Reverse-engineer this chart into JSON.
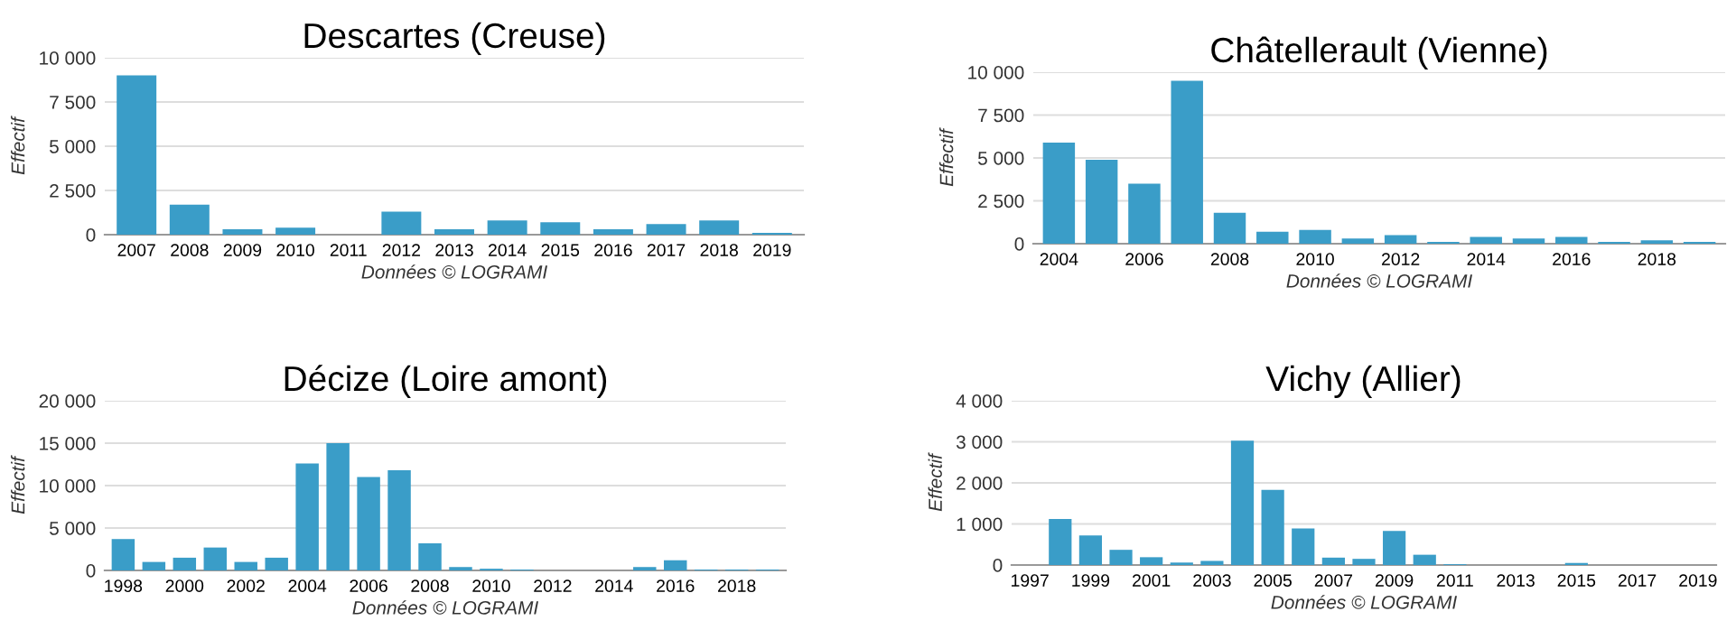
{
  "chart_data": [
    {
      "type": "bar",
      "title": "Descartes (Creuse)",
      "ylabel": "Effectif",
      "xlabel": "Données © LOGRAMI",
      "color": "#3a9dc8",
      "grid": "y",
      "legend": false,
      "categories": [
        "2007",
        "2008",
        "2009",
        "2010",
        "2011",
        "2012",
        "2013",
        "2014",
        "2015",
        "2016",
        "2017",
        "2018",
        "2019"
      ],
      "values": [
        9000,
        1700,
        300,
        400,
        0,
        1300,
        300,
        800,
        700,
        300,
        600,
        800,
        100
      ],
      "ylim": [
        0,
        10000
      ],
      "yticks": [
        0,
        {
          "value": 2500,
          "label": "2 500"
        },
        {
          "value": 5000,
          "label": "5 000"
        },
        {
          "value": 7500,
          "label": "7 500"
        },
        {
          "value": 10000,
          "label": "10 000"
        }
      ]
    },
    {
      "type": "bar",
      "title": "Châtellerault (Vienne)",
      "ylabel": "Effectif",
      "xlabel": "Données © LOGRAMI",
      "color": "#3a9dc8",
      "grid": "y",
      "legend": false,
      "categories": [
        "2004",
        null,
        "2006",
        null,
        "2008",
        null,
        "2010",
        null,
        "2012",
        null,
        "2014",
        null,
        "2016",
        null,
        "2018",
        null
      ],
      "values": [
        5900,
        4900,
        3500,
        9500,
        1800,
        700,
        800,
        300,
        500,
        100,
        400,
        300,
        400,
        100,
        200,
        100
      ],
      "ylim": [
        0,
        10000
      ],
      "yticks": [
        0,
        {
          "value": 2500,
          "label": "2 500"
        },
        {
          "value": 5000,
          "label": "5 000"
        },
        {
          "value": 7500,
          "label": "7 500"
        },
        {
          "value": 10000,
          "label": "10 000"
        }
      ]
    },
    {
      "type": "bar",
      "title": "Décize (Loire amont)",
      "ylabel": "Effectif",
      "xlabel": "Données © LOGRAMI",
      "color": "#3a9dc8",
      "grid": "y",
      "legend": false,
      "categories": [
        "1998",
        null,
        "2000",
        null,
        "2002",
        null,
        "2004",
        null,
        "2006",
        null,
        "2008",
        null,
        "2010",
        null,
        "2012",
        null,
        "2014",
        null,
        "2016",
        null,
        "2018",
        null
      ],
      "values": [
        3700,
        1000,
        1500,
        2700,
        1000,
        1500,
        12600,
        15000,
        11000,
        11800,
        3200,
        400,
        200,
        100,
        0,
        0,
        0,
        400,
        1200,
        100,
        100,
        100
      ],
      "ylim": [
        0,
        20000
      ],
      "yticks": [
        0,
        {
          "value": 5000,
          "label": "5 000"
        },
        {
          "value": 10000,
          "label": "10 000"
        },
        {
          "value": 15000,
          "label": "15 000"
        },
        {
          "value": 20000,
          "label": "20 000"
        }
      ]
    },
    {
      "type": "bar",
      "title": "Vichy (Allier)",
      "ylabel": "Effectif",
      "xlabel": "Données © LOGRAMI",
      "color": "#3a9dc8",
      "grid": "y",
      "legend": false,
      "categories": [
        "1997",
        null,
        "1999",
        null,
        "2001",
        null,
        "2003",
        null,
        "2005",
        null,
        "2007",
        null,
        "2009",
        null,
        "2011",
        null,
        "2013",
        null,
        "2015",
        null,
        "2017",
        null,
        "2019"
      ],
      "values": [
        0,
        1120,
        720,
        370,
        190,
        60,
        100,
        3030,
        1830,
        890,
        180,
        150,
        830,
        250,
        20,
        0,
        0,
        0,
        50,
        0,
        0,
        0,
        0
      ],
      "ylim": [
        0,
        4000
      ],
      "yticks": [
        0,
        {
          "value": 1000,
          "label": "1 000"
        },
        {
          "value": 2000,
          "label": "2 000"
        },
        {
          "value": 3000,
          "label": "3 000"
        },
        {
          "value": 4000,
          "label": "4 000"
        }
      ]
    }
  ]
}
